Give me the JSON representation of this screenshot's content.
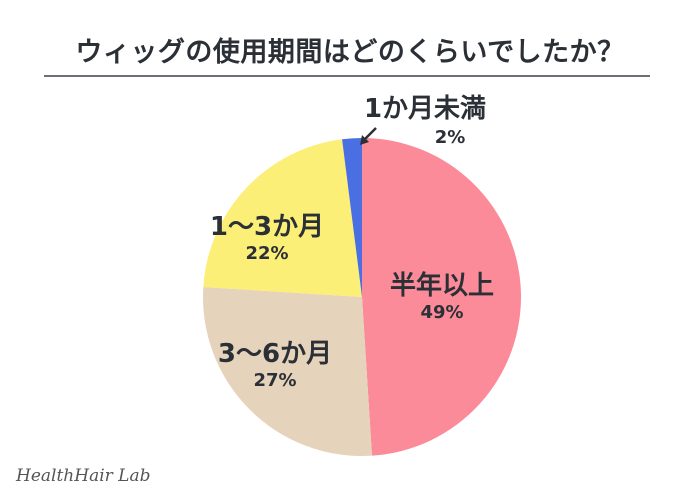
{
  "title": "ウィッグの使用期間はどのくらいでしたか？",
  "logo": "HealthHair Lab",
  "chart_data": {
    "type": "pie",
    "title": "ウィッグの使用期間はどのくらいでしたか？",
    "categories": [
      "半年以上",
      "3〜6か月",
      "1〜3か月",
      "1か月未満"
    ],
    "values": [
      49,
      27,
      22,
      2
    ],
    "unit": "%",
    "colors": [
      "#fb8b98",
      "#e6d3bb",
      "#fbef78",
      "#4a6fe3"
    ],
    "start_angle": "12 o'clock",
    "direction": "clockwise",
    "labels": [
      {
        "name": "半年以上",
        "pct": "49%"
      },
      {
        "name": "3〜6か月",
        "pct": "27%"
      },
      {
        "name": "1〜3か月",
        "pct": "22%"
      },
      {
        "name": "1か月未満",
        "pct": "2%"
      }
    ]
  }
}
